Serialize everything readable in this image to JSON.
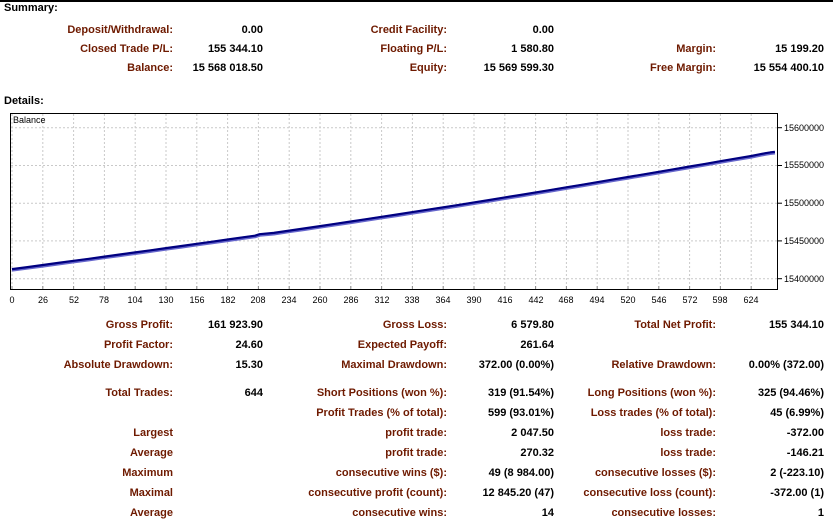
{
  "summary": {
    "heading": "Summary:",
    "rows": [
      {
        "l1": "Deposit/Withdrawal:",
        "v1": "0.00",
        "l2": "Credit Facility:",
        "v2": "0.00",
        "l3": "",
        "v3": ""
      },
      {
        "l1": "Closed Trade P/L:",
        "v1": "155 344.10",
        "l2": "Floating P/L:",
        "v2": "1 580.80",
        "l3": "Margin:",
        "v3": "15 199.20"
      },
      {
        "l1": "Balance:",
        "v1": "15 568 018.50",
        "l2": "Equity:",
        "v2": "15 569 599.30",
        "l3": "Free Margin:",
        "v3": "15 554 400.10"
      }
    ]
  },
  "details": {
    "heading": "Details:",
    "block1": {
      "rows": [
        {
          "l1": "Gross Profit:",
          "v1": "161 923.90",
          "l2": "Gross Loss:",
          "v2": "6 579.80",
          "l3": "Total Net Profit:",
          "v3": "155 344.10"
        },
        {
          "l1": "Profit Factor:",
          "v1": "24.60",
          "l2": "Expected Payoff:",
          "v2": "261.64",
          "l3": "",
          "v3": ""
        },
        {
          "l1": "Absolute Drawdown:",
          "v1": "15.30",
          "l2": "Maximal Drawdown:",
          "v2": "372.00 (0.00%)",
          "l3": "Relative Drawdown:",
          "v3": "0.00% (372.00)"
        }
      ]
    },
    "block2": {
      "rows": [
        {
          "l1": "Total Trades:",
          "v1": "644",
          "l2": "Short Positions (won %):",
          "v2": "319 (91.54%)",
          "l3": "Long Positions (won %):",
          "v3": "325 (94.46%)"
        },
        {
          "l1": "",
          "v1": "",
          "l2": "Profit Trades (% of total):",
          "v2": "599 (93.01%)",
          "l3": "Loss trades (% of total):",
          "v3": "45 (6.99%)"
        },
        {
          "l1": "Largest",
          "v1": "",
          "l2": "profit trade:",
          "v2": "2 047.50",
          "l3": "loss trade:",
          "v3": "-372.00"
        },
        {
          "l1": "Average",
          "v1": "",
          "l2": "profit trade:",
          "v2": "270.32",
          "l3": "loss trade:",
          "v3": "-146.21"
        },
        {
          "l1": "Maximum",
          "v1": "",
          "l2": "consecutive wins ($):",
          "v2": "49 (8 984.00)",
          "l3": "consecutive losses ($):",
          "v3": "2 (-223.10)"
        },
        {
          "l1": "Maximal",
          "v1": "",
          "l2": "consecutive profit (count):",
          "v2": "12 845.20 (47)",
          "l3": "consecutive loss (count):",
          "v3": "-372.00 (1)"
        },
        {
          "l1": "Average",
          "v1": "",
          "l2": "consecutive wins:",
          "v2": "14",
          "l3": "consecutive losses:",
          "v3": "1"
        }
      ]
    }
  },
  "chart_data": {
    "type": "line",
    "title": "Balance",
    "xlabel": "",
    "ylabel": "",
    "legend_position": "top-left-inside",
    "grid": true,
    "grid_color": "#c9c9c9",
    "border_color": "#000000",
    "x_ticks": [
      0,
      26,
      52,
      78,
      104,
      130,
      156,
      182,
      208,
      234,
      260,
      286,
      312,
      338,
      364,
      390,
      416,
      442,
      468,
      494,
      520,
      546,
      572,
      598,
      624
    ],
    "y_ticks": [
      15400000,
      15450000,
      15500000,
      15550000,
      15600000
    ],
    "xlim": [
      -1.69,
      646.6
    ],
    "ylim": [
      15385000,
      15619500
    ],
    "series": [
      {
        "name": "Balance",
        "color": "#000080",
        "shadow_color": "#6666cc",
        "points": [
          [
            0,
            15412674
          ],
          [
            13,
            15415300
          ],
          [
            26,
            15418186
          ],
          [
            39,
            15420900
          ],
          [
            52,
            15423710
          ],
          [
            65,
            15426400
          ],
          [
            78,
            15429260
          ],
          [
            91,
            15432000
          ],
          [
            104,
            15434845
          ],
          [
            117,
            15437600
          ],
          [
            130,
            15440477
          ],
          [
            143,
            15443300
          ],
          [
            156,
            15446164
          ],
          [
            169,
            15449000
          ],
          [
            182,
            15451920
          ],
          [
            195,
            15454800
          ],
          [
            205,
            15456900
          ],
          [
            209,
            15458900
          ],
          [
            221,
            15460600
          ],
          [
            234,
            15463659
          ],
          [
            247,
            15466600
          ],
          [
            260,
            15469659
          ],
          [
            273,
            15472700
          ],
          [
            286,
            15475750
          ],
          [
            299,
            15478800
          ],
          [
            312,
            15481935
          ],
          [
            325,
            15485000
          ],
          [
            338,
            15488218
          ],
          [
            351,
            15491400
          ],
          [
            364,
            15494597
          ],
          [
            377,
            15497800
          ],
          [
            390,
            15501069
          ],
          [
            403,
            15504300
          ],
          [
            416,
            15507634
          ],
          [
            429,
            15510900
          ],
          [
            442,
            15514286
          ],
          [
            455,
            15517600
          ],
          [
            468,
            15521021
          ],
          [
            481,
            15524400
          ],
          [
            494,
            15527830
          ],
          [
            507,
            15531200
          ],
          [
            520,
            15534706
          ],
          [
            533,
            15538100
          ],
          [
            546,
            15541640
          ],
          [
            559,
            15545100
          ],
          [
            572,
            15548622
          ],
          [
            585,
            15552100
          ],
          [
            598,
            15555577
          ],
          [
            611,
            15559100
          ],
          [
            624,
            15562593
          ],
          [
            630,
            15564400
          ],
          [
            636,
            15566300
          ],
          [
            640,
            15567300
          ],
          [
            644,
            15568018
          ]
        ]
      }
    ]
  }
}
